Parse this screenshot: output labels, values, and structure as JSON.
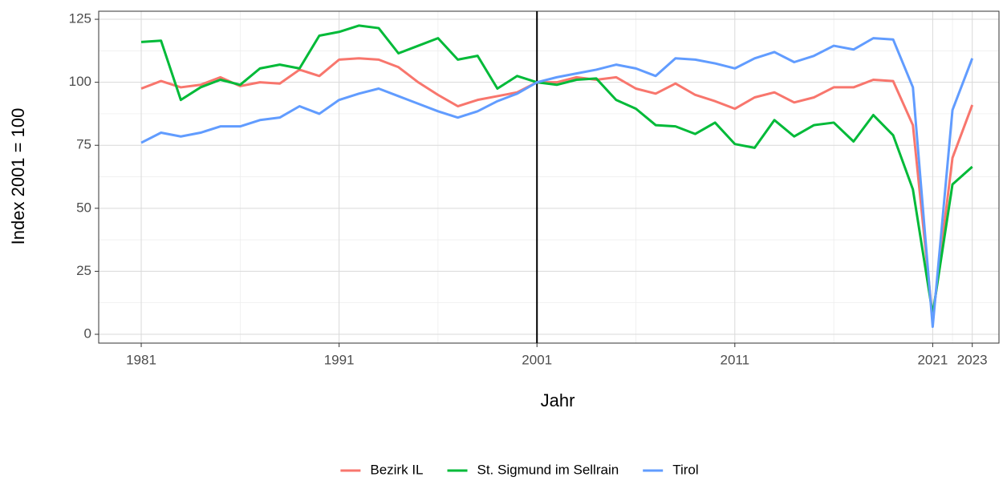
{
  "chart_data": {
    "type": "line",
    "x_label": "Jahr",
    "y_label": "Index 2001 = 100",
    "x": [
      1981,
      1982,
      1983,
      1984,
      1985,
      1986,
      1987,
      1988,
      1989,
      1990,
      1991,
      1992,
      1993,
      1994,
      1995,
      1996,
      1997,
      1998,
      1999,
      2000,
      2001,
      2002,
      2003,
      2004,
      2005,
      2006,
      2007,
      2008,
      2009,
      2010,
      2011,
      2012,
      2013,
      2014,
      2015,
      2016,
      2017,
      2018,
      2019,
      2020,
      2021,
      2022,
      2023
    ],
    "series": [
      {
        "name": "Bezirk IL",
        "color": "#F8766D",
        "values": [
          97.5,
          100.5,
          98,
          99,
          102,
          98.5,
          100,
          99.5,
          105,
          102.5,
          109,
          109.5,
          109,
          106,
          100,
          95,
          90.5,
          93,
          94.5,
          96,
          100,
          100,
          102,
          101,
          102,
          97.5,
          95.5,
          99.5,
          95,
          92.5,
          89.5,
          94,
          96,
          92,
          94,
          98,
          98,
          101,
          100.5,
          83,
          6,
          70,
          91
        ]
      },
      {
        "name": "St. Sigmund im Sellrain",
        "color": "#00BA38",
        "values": [
          116,
          116.5,
          93,
          98,
          101,
          99,
          105.5,
          107,
          105.5,
          118.5,
          120,
          122.5,
          121.5,
          111.5,
          114.5,
          117.5,
          109,
          110.5,
          97.5,
          102.5,
          100,
          99,
          101,
          101.5,
          93,
          89.5,
          83,
          82.5,
          79.5,
          84,
          75.5,
          74,
          85,
          78.5,
          83,
          84,
          76.5,
          87,
          79,
          57.5,
          8,
          59.5,
          66.5
        ]
      },
      {
        "name": "Tirol",
        "color": "#619CFF",
        "values": [
          76,
          80,
          78.5,
          80,
          82.5,
          82.5,
          85,
          86,
          90.5,
          87.5,
          93,
          95.5,
          97.5,
          94.5,
          91.5,
          88.5,
          86,
          88.5,
          92.5,
          95.5,
          100,
          102,
          103.5,
          105,
          107,
          105.5,
          102.5,
          109.5,
          109,
          107.5,
          105.5,
          109.5,
          112,
          108,
          110.5,
          114.5,
          113,
          117.5,
          117,
          98,
          3,
          89,
          109.5
        ]
      }
    ],
    "xlim": [
      1978.85,
      2024.35
    ],
    "xticks": [
      1981,
      1991,
      2001,
      2011,
      2021,
      2023
    ],
    "ylim": [
      -3.5,
      128.2
    ],
    "yticks": [
      0,
      25,
      50,
      75,
      100,
      125
    ],
    "vline": 2001,
    "grid": true,
    "legend": "bottom"
  }
}
